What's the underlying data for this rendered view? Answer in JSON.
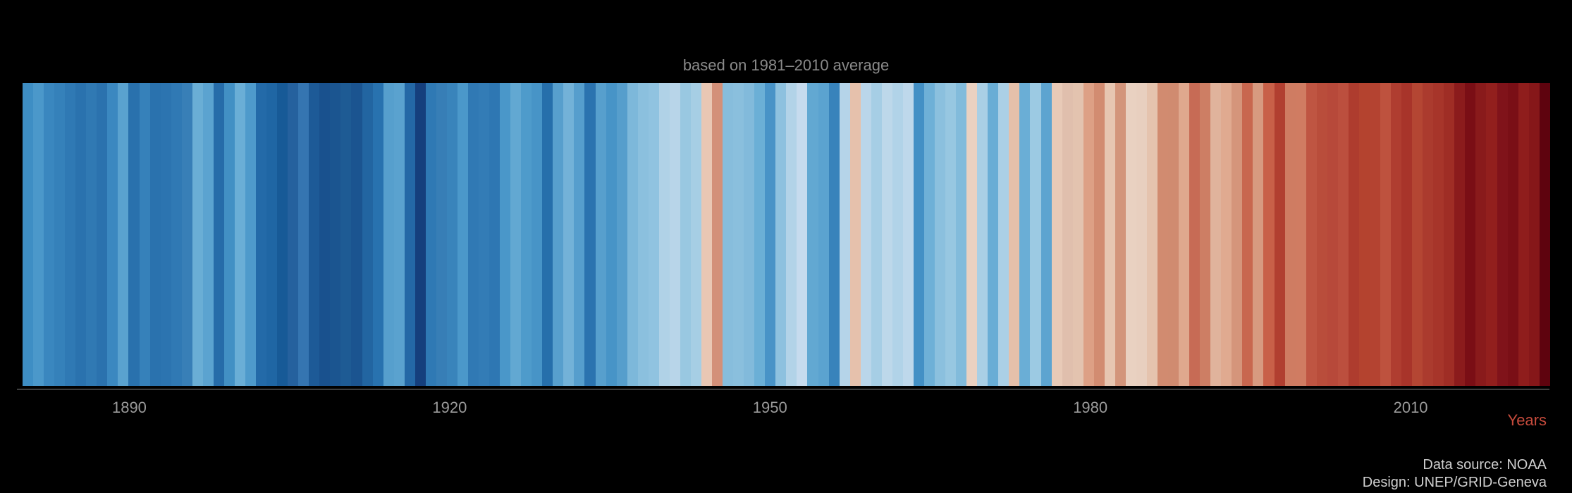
{
  "chart": {
    "type": "warming-stripes",
    "subtitle": "based on 1981–2010 average",
    "background_color": "#000000",
    "subtitle_color": "#8a8a8a",
    "subtitle_fontsize": 22,
    "axis": {
      "line_color": "#888888",
      "title": "Years",
      "title_color": "#c64b3c",
      "title_fontsize": 22,
      "tick_color": "#9a9a9a",
      "tick_fontsize": 22,
      "ticks": [
        1890,
        1920,
        1950,
        1980,
        2010
      ]
    },
    "year_start": 1880,
    "year_end": 2023,
    "stripes": [
      {
        "year": 1880,
        "color": "#3e8ec4"
      },
      {
        "year": 1881,
        "color": "#4b98ca"
      },
      {
        "year": 1882,
        "color": "#3a87bf"
      },
      {
        "year": 1883,
        "color": "#3581ba"
      },
      {
        "year": 1884,
        "color": "#2f79b4"
      },
      {
        "year": 1885,
        "color": "#2a72ae"
      },
      {
        "year": 1886,
        "color": "#3079b3"
      },
      {
        "year": 1887,
        "color": "#2b72ae"
      },
      {
        "year": 1888,
        "color": "#3b88c0"
      },
      {
        "year": 1889,
        "color": "#5aa2cf"
      },
      {
        "year": 1890,
        "color": "#2971ad"
      },
      {
        "year": 1891,
        "color": "#3681ba"
      },
      {
        "year": 1892,
        "color": "#2a72ae"
      },
      {
        "year": 1893,
        "color": "#2c74b0"
      },
      {
        "year": 1894,
        "color": "#3079b4"
      },
      {
        "year": 1895,
        "color": "#387fb7"
      },
      {
        "year": 1896,
        "color": "#6aaed5"
      },
      {
        "year": 1897,
        "color": "#5ba3d0"
      },
      {
        "year": 1898,
        "color": "#266ca9"
      },
      {
        "year": 1899,
        "color": "#4290c4"
      },
      {
        "year": 1900,
        "color": "#6aaed6"
      },
      {
        "year": 1901,
        "color": "#4e9acb"
      },
      {
        "year": 1902,
        "color": "#236aa8"
      },
      {
        "year": 1903,
        "color": "#1f66a4"
      },
      {
        "year": 1904,
        "color": "#175a97"
      },
      {
        "year": 1905,
        "color": "#25619e"
      },
      {
        "year": 1906,
        "color": "#3575b1"
      },
      {
        "year": 1907,
        "color": "#1d5a97"
      },
      {
        "year": 1908,
        "color": "#19518e"
      },
      {
        "year": 1909,
        "color": "#1b5590"
      },
      {
        "year": 1910,
        "color": "#1e5b94"
      },
      {
        "year": 1911,
        "color": "#1b5490"
      },
      {
        "year": 1912,
        "color": "#2265a1"
      },
      {
        "year": 1913,
        "color": "#2872af"
      },
      {
        "year": 1914,
        "color": "#569fcd"
      },
      {
        "year": 1915,
        "color": "#5aa2cf"
      },
      {
        "year": 1916,
        "color": "#2468a6"
      },
      {
        "year": 1917,
        "color": "#153f7d"
      },
      {
        "year": 1918,
        "color": "#2f79b4"
      },
      {
        "year": 1919,
        "color": "#377eb6"
      },
      {
        "year": 1920,
        "color": "#3984bb"
      },
      {
        "year": 1921,
        "color": "#4b98ca"
      },
      {
        "year": 1922,
        "color": "#3079b4"
      },
      {
        "year": 1923,
        "color": "#337cb6"
      },
      {
        "year": 1924,
        "color": "#2e77b3"
      },
      {
        "year": 1925,
        "color": "#4a97c9"
      },
      {
        "year": 1926,
        "color": "#62a8d2"
      },
      {
        "year": 1927,
        "color": "#4e9bcb"
      },
      {
        "year": 1928,
        "color": "#4794c7"
      },
      {
        "year": 1929,
        "color": "#266fab"
      },
      {
        "year": 1930,
        "color": "#579fcd"
      },
      {
        "year": 1931,
        "color": "#73b2d8"
      },
      {
        "year": 1932,
        "color": "#569ecd"
      },
      {
        "year": 1933,
        "color": "#2b73af"
      },
      {
        "year": 1934,
        "color": "#579fcd"
      },
      {
        "year": 1935,
        "color": "#4794c7"
      },
      {
        "year": 1936,
        "color": "#569ecc"
      },
      {
        "year": 1937,
        "color": "#7db8da"
      },
      {
        "year": 1938,
        "color": "#8bc0de"
      },
      {
        "year": 1939,
        "color": "#90c3e0"
      },
      {
        "year": 1940,
        "color": "#b0d2e7"
      },
      {
        "year": 1941,
        "color": "#b8d5e9"
      },
      {
        "year": 1942,
        "color": "#99c8e1"
      },
      {
        "year": 1943,
        "color": "#a6cee4"
      },
      {
        "year": 1944,
        "color": "#e9c7b4"
      },
      {
        "year": 1945,
        "color": "#d39079"
      },
      {
        "year": 1946,
        "color": "#87bddc"
      },
      {
        "year": 1947,
        "color": "#8abfdd"
      },
      {
        "year": 1948,
        "color": "#82badb"
      },
      {
        "year": 1949,
        "color": "#6bafd6"
      },
      {
        "year": 1950,
        "color": "#4893c7"
      },
      {
        "year": 1951,
        "color": "#8dc1df"
      },
      {
        "year": 1952,
        "color": "#b2d3e8"
      },
      {
        "year": 1953,
        "color": "#c6dbee"
      },
      {
        "year": 1954,
        "color": "#62a8d2"
      },
      {
        "year": 1955,
        "color": "#5ba3d0"
      },
      {
        "year": 1956,
        "color": "#3883bb"
      },
      {
        "year": 1957,
        "color": "#b5d4e9"
      },
      {
        "year": 1958,
        "color": "#e6c1ac"
      },
      {
        "year": 1959,
        "color": "#bad6ea"
      },
      {
        "year": 1960,
        "color": "#a6cee5"
      },
      {
        "year": 1961,
        "color": "#bdd8ea"
      },
      {
        "year": 1962,
        "color": "#b1d3e8"
      },
      {
        "year": 1963,
        "color": "#bed8eb"
      },
      {
        "year": 1964,
        "color": "#4390c5"
      },
      {
        "year": 1965,
        "color": "#6eb0d7"
      },
      {
        "year": 1966,
        "color": "#8bc0de"
      },
      {
        "year": 1967,
        "color": "#97c7e1"
      },
      {
        "year": 1968,
        "color": "#82bbdb"
      },
      {
        "year": 1969,
        "color": "#ead1c1"
      },
      {
        "year": 1970,
        "color": "#a9cfe5"
      },
      {
        "year": 1971,
        "color": "#69add5"
      },
      {
        "year": 1972,
        "color": "#abd0e6"
      },
      {
        "year": 1973,
        "color": "#e5c0aa"
      },
      {
        "year": 1974,
        "color": "#6aaed6"
      },
      {
        "year": 1975,
        "color": "#9ccae3"
      },
      {
        "year": 1976,
        "color": "#5da4d0"
      },
      {
        "year": 1977,
        "color": "#e8cab7"
      },
      {
        "year": 1978,
        "color": "#e0bfad"
      },
      {
        "year": 1979,
        "color": "#e3c3af"
      },
      {
        "year": 1980,
        "color": "#dda085"
      },
      {
        "year": 1981,
        "color": "#d28c71"
      },
      {
        "year": 1982,
        "color": "#e7c6b1"
      },
      {
        "year": 1983,
        "color": "#d3957b"
      },
      {
        "year": 1984,
        "color": "#e9d1c1"
      },
      {
        "year": 1985,
        "color": "#e8cfbf"
      },
      {
        "year": 1986,
        "color": "#e5c3ae"
      },
      {
        "year": 1987,
        "color": "#d18b70"
      },
      {
        "year": 1988,
        "color": "#d08b70"
      },
      {
        "year": 1989,
        "color": "#dfa88e"
      },
      {
        "year": 1990,
        "color": "#c76b55"
      },
      {
        "year": 1991,
        "color": "#cd7e64"
      },
      {
        "year": 1992,
        "color": "#e0b39c"
      },
      {
        "year": 1993,
        "color": "#e0aa90"
      },
      {
        "year": 1994,
        "color": "#d5957b"
      },
      {
        "year": 1995,
        "color": "#c8674f"
      },
      {
        "year": 1996,
        "color": "#d79a80"
      },
      {
        "year": 1997,
        "color": "#c86048"
      },
      {
        "year": 1998,
        "color": "#b13f30"
      },
      {
        "year": 1999,
        "color": "#cf7c62"
      },
      {
        "year": 2000,
        "color": "#d07c62"
      },
      {
        "year": 2001,
        "color": "#bf5542"
      },
      {
        "year": 2002,
        "color": "#b94d3b"
      },
      {
        "year": 2003,
        "color": "#b7493a"
      },
      {
        "year": 2004,
        "color": "#bc4f3e"
      },
      {
        "year": 2005,
        "color": "#ae3c2e"
      },
      {
        "year": 2006,
        "color": "#b4432f"
      },
      {
        "year": 2007,
        "color": "#b44331"
      },
      {
        "year": 2008,
        "color": "#be523e"
      },
      {
        "year": 2009,
        "color": "#af3d30"
      },
      {
        "year": 2010,
        "color": "#a8342a"
      },
      {
        "year": 2011,
        "color": "#b44633"
      },
      {
        "year": 2012,
        "color": "#ab3b2e"
      },
      {
        "year": 2013,
        "color": "#a7352a"
      },
      {
        "year": 2014,
        "color": "#9f2d25"
      },
      {
        "year": 2015,
        "color": "#8b1b1c"
      },
      {
        "year": 2016,
        "color": "#7a0e15"
      },
      {
        "year": 2017,
        "color": "#891a1b"
      },
      {
        "year": 2018,
        "color": "#921f1d"
      },
      {
        "year": 2019,
        "color": "#80131a"
      },
      {
        "year": 2020,
        "color": "#7a0f16"
      },
      {
        "year": 2021,
        "color": "#8f1d1c"
      },
      {
        "year": 2022,
        "color": "#861719"
      },
      {
        "year": 2023,
        "color": "#5e030e"
      }
    ],
    "credits": {
      "line1": "Data source: NOAA",
      "line2": "Design: UNEP/GRID-Geneva",
      "color": "#cfcfcf",
      "fontsize": 20
    }
  }
}
